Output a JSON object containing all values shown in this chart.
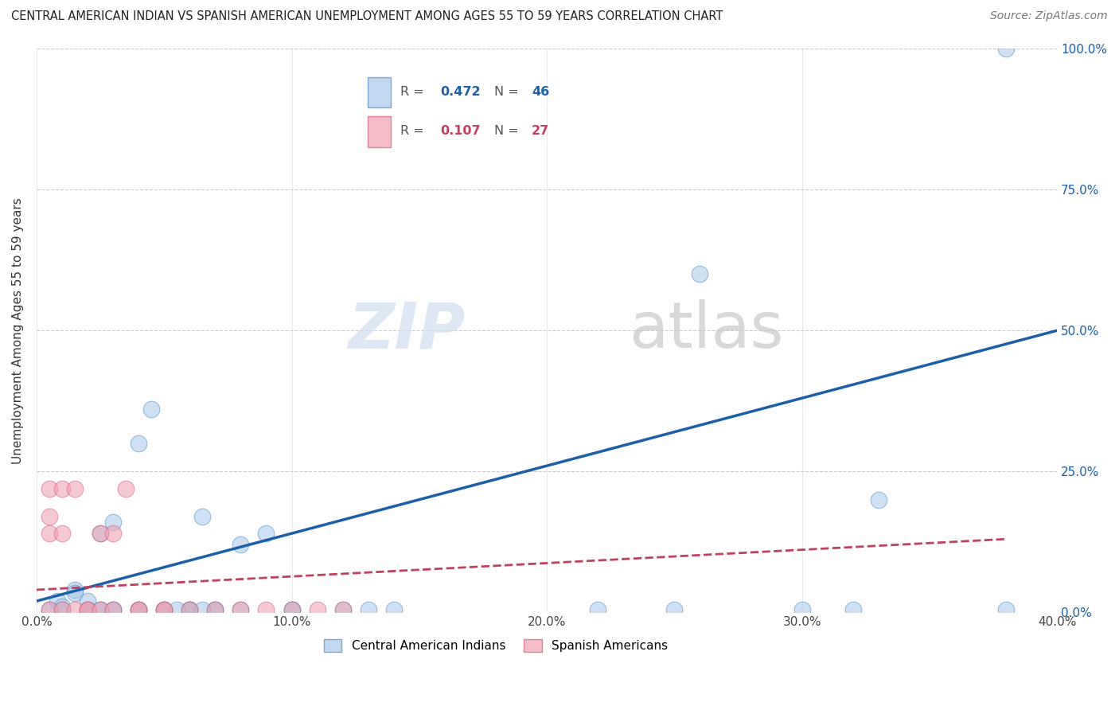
{
  "title": "CENTRAL AMERICAN INDIAN VS SPANISH AMERICAN UNEMPLOYMENT AMONG AGES 55 TO 59 YEARS CORRELATION CHART",
  "source": "Source: ZipAtlas.com",
  "ylabel": "Unemployment Among Ages 55 to 59 years",
  "xlim": [
    0,
    0.4
  ],
  "ylim": [
    0,
    1.0
  ],
  "xticks": [
    0.0,
    0.1,
    0.2,
    0.3,
    0.4
  ],
  "yticks": [
    0.0,
    0.25,
    0.5,
    0.75,
    1.0
  ],
  "xtick_labels": [
    "0.0%",
    "10.0%",
    "20.0%",
    "30.0%",
    "40.0%"
  ],
  "ytick_labels": [
    "0.0%",
    "25.0%",
    "50.0%",
    "75.0%",
    "100.0%"
  ],
  "blue_R": "0.472",
  "blue_N": "46",
  "pink_R": "0.107",
  "pink_N": "27",
  "blue_color": "#a8c8e8",
  "blue_line_color": "#1a5fa8",
  "pink_color": "#f0a0b0",
  "pink_line_color": "#c04060",
  "blue_scatter": [
    [
      0.005,
      0.005
    ],
    [
      0.008,
      0.02
    ],
    [
      0.01,
      0.01
    ],
    [
      0.01,
      0.005
    ],
    [
      0.015,
      0.04
    ],
    [
      0.015,
      0.035
    ],
    [
      0.02,
      0.005
    ],
    [
      0.02,
      0.005
    ],
    [
      0.02,
      0.02
    ],
    [
      0.02,
      0.005
    ],
    [
      0.025,
      0.005
    ],
    [
      0.025,
      0.14
    ],
    [
      0.025,
      0.005
    ],
    [
      0.03,
      0.005
    ],
    [
      0.03,
      0.16
    ],
    [
      0.03,
      0.005
    ],
    [
      0.04,
      0.005
    ],
    [
      0.04,
      0.005
    ],
    [
      0.04,
      0.3
    ],
    [
      0.045,
      0.36
    ],
    [
      0.05,
      0.005
    ],
    [
      0.05,
      0.005
    ],
    [
      0.06,
      0.005
    ],
    [
      0.06,
      0.005
    ],
    [
      0.06,
      0.005
    ],
    [
      0.065,
      0.17
    ],
    [
      0.07,
      0.005
    ],
    [
      0.07,
      0.005
    ],
    [
      0.08,
      0.12
    ],
    [
      0.08,
      0.005
    ],
    [
      0.09,
      0.14
    ],
    [
      0.1,
      0.005
    ],
    [
      0.1,
      0.005
    ],
    [
      0.12,
      0.005
    ],
    [
      0.13,
      0.005
    ],
    [
      0.14,
      0.005
    ],
    [
      0.22,
      0.005
    ],
    [
      0.25,
      0.005
    ],
    [
      0.26,
      0.6
    ],
    [
      0.3,
      0.005
    ],
    [
      0.32,
      0.005
    ],
    [
      0.33,
      0.2
    ],
    [
      0.38,
      0.005
    ],
    [
      0.38,
      1.0
    ],
    [
      0.055,
      0.005
    ],
    [
      0.065,
      0.005
    ]
  ],
  "pink_scatter": [
    [
      0.005,
      0.22
    ],
    [
      0.005,
      0.17
    ],
    [
      0.005,
      0.14
    ],
    [
      0.005,
      0.005
    ],
    [
      0.01,
      0.22
    ],
    [
      0.01,
      0.14
    ],
    [
      0.01,
      0.005
    ],
    [
      0.015,
      0.22
    ],
    [
      0.015,
      0.005
    ],
    [
      0.02,
      0.005
    ],
    [
      0.02,
      0.005
    ],
    [
      0.025,
      0.005
    ],
    [
      0.025,
      0.14
    ],
    [
      0.03,
      0.005
    ],
    [
      0.03,
      0.14
    ],
    [
      0.035,
      0.22
    ],
    [
      0.04,
      0.005
    ],
    [
      0.04,
      0.005
    ],
    [
      0.05,
      0.005
    ],
    [
      0.05,
      0.005
    ],
    [
      0.06,
      0.005
    ],
    [
      0.07,
      0.005
    ],
    [
      0.08,
      0.005
    ],
    [
      0.09,
      0.005
    ],
    [
      0.1,
      0.005
    ],
    [
      0.11,
      0.005
    ],
    [
      0.12,
      0.005
    ]
  ],
  "blue_line_x": [
    0.0,
    0.4
  ],
  "blue_line_y": [
    0.02,
    0.5
  ],
  "pink_line_x": [
    0.0,
    0.38
  ],
  "pink_line_y": [
    0.04,
    0.13
  ],
  "watermark_zip": "ZIP",
  "watermark_atlas": "atlas",
  "background_color": "#ffffff",
  "grid_color": "#cccccc"
}
